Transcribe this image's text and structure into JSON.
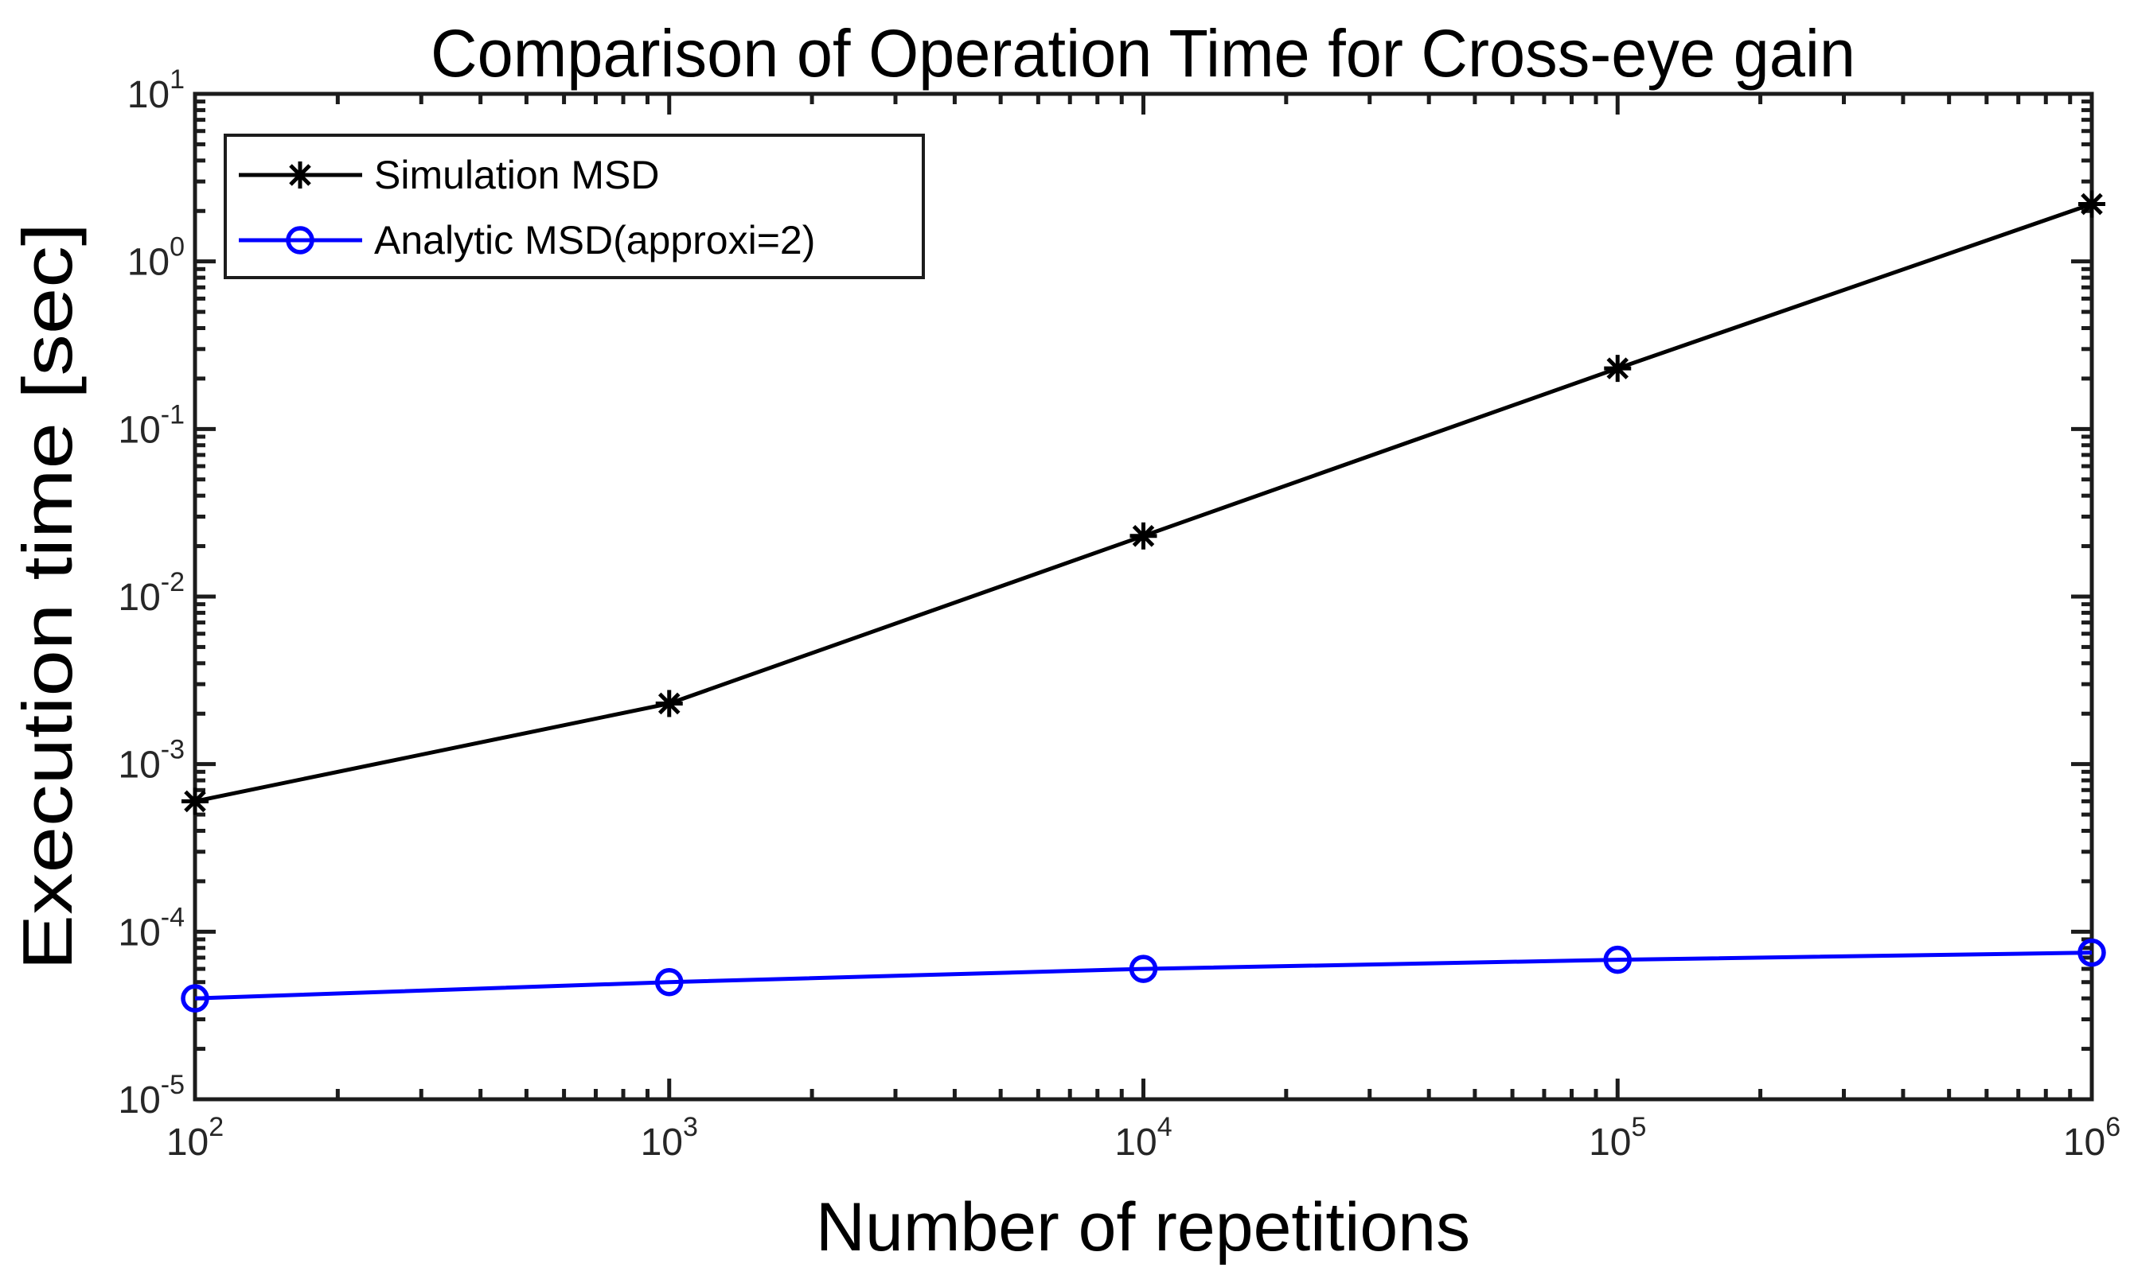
{
  "figure": {
    "background": "#ffffff",
    "axis_color": "#1c1c1c",
    "tick_label_color": "#262626",
    "text_color": "#000000"
  },
  "chart_data": {
    "type": "line",
    "title": "Comparison of Operation Time for Cross-eye gain",
    "xlabel": "Number of repetitions",
    "ylabel": "Execution time [sec]",
    "xscale": "log",
    "yscale": "log",
    "xlim": [
      100,
      1000000
    ],
    "ylim": [
      1e-05,
      10
    ],
    "grid": false,
    "legend_position": "top-left",
    "x": [
      100,
      1000,
      10000,
      100000,
      1000000
    ],
    "x_tick_labels": [
      "10^2",
      "10^3",
      "10^4",
      "10^5",
      "10^6"
    ],
    "y_tick_labels": [
      "10^-5",
      "10^-4",
      "10^-3",
      "10^-2",
      "10^-1",
      "10^0",
      "10^1"
    ],
    "series": [
      {
        "name": "Simulation MSD",
        "color": "#000000",
        "marker": "asterisk",
        "values": [
          0.0006,
          0.0023,
          0.023,
          0.23,
          2.2
        ]
      },
      {
        "name": "Analytic MSD(approxi=2)",
        "color": "#0000ff",
        "marker": "circle",
        "values": [
          4e-05,
          5e-05,
          6e-05,
          6.8e-05,
          7.5e-05
        ]
      }
    ]
  }
}
